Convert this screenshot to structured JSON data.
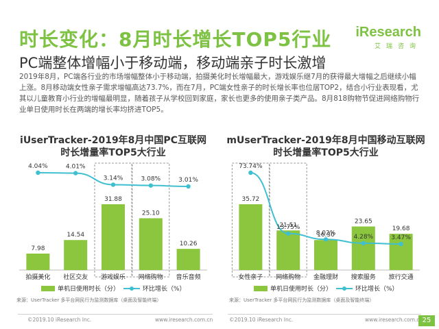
{
  "header": {
    "title": "时长变化：8月时长增长TOP5行业",
    "subtitle": "PC端整体增幅小于移动端，移动端亲子时长激增",
    "logo_main": "iResearch",
    "logo_sub": "艾瑞咨询"
  },
  "body_text": "2019年8月，PC端各行业的市场增幅整体小于移动端，拍摄美化时长增幅最大，游戏娱乐继7月的获得最大增幅之后继续小幅上涨。8月移动端女性亲子需求增幅高达73.7%，而在7月，PC端女性亲子的时长增长率也位居TOP2，结合小行业表现看，尤其以儿童教育小行业的增幅最明显，随着孩子从学校回到家庭，家长也更多的使用亲子类产品。8月818购物节促进网络购物行业单日使用时长在两端的增长率均挤进TOP5。",
  "chart_data": [
    {
      "type": "bar",
      "title": "iUserTracker-2019年8月中国PC互联网",
      "subtitle": "时长增量率TOP5大行业",
      "categories": [
        "拍摄美化",
        "社区交友",
        "游戏娱乐",
        "网络购物",
        "音乐音频"
      ],
      "series": [
        {
          "name": "单机日使用时长（分）",
          "type": "bar",
          "values": [
            7.98,
            14.54,
            31.88,
            25.1,
            10.26
          ],
          "color": "#8cc63f"
        },
        {
          "name": "环比增长（%）",
          "type": "line",
          "values": [
            4.04,
            4.01,
            3.14,
            3.08,
            3.01
          ],
          "color": "#3fbfd0",
          "unit": "%"
        }
      ],
      "highlighted": [
        "游戏娱乐",
        "网络购物"
      ],
      "source": "来源：UserTracker 多平台网民行为监测数据库（桌面及智能终端）",
      "copyright": "©2019.10 iResearch Inc.",
      "url": "www.iresearch.com.cn"
    },
    {
      "type": "bar",
      "title": "mUserTracker-2019年8月中国移动互联网",
      "subtitle": "时长增量率TOP5大行业",
      "categories": [
        "女性亲子",
        "网络购物",
        "金融理财",
        "搜索服务",
        "旅行交通"
      ],
      "series": [
        {
          "name": "单机日使用时长（分）",
          "type": "bar",
          "values": [
            35.72,
            21.51,
            16.3,
            23.65,
            19.68
          ],
          "color": "#8cc63f"
        },
        {
          "name": "环比增长（%）",
          "type": "line",
          "values": [
            73.74,
            13.75,
            8.02,
            4.28,
            3.47
          ],
          "color": "#3fbfd0",
          "unit": "%"
        }
      ],
      "highlighted": [
        "女性亲子",
        "网络购物"
      ],
      "source": "来源：UserTracker 多平台网民行为监测数据库（桌面及智能终端）",
      "copyright": "©2019.10 iResearch Inc.",
      "url": "www.iresearch.com.cn"
    }
  ],
  "page_number": "25",
  "colors": {
    "accent": "#7dc242",
    "bar": "#8cc63f",
    "line": "#3fbfd0",
    "highlight_border": "#999999"
  }
}
